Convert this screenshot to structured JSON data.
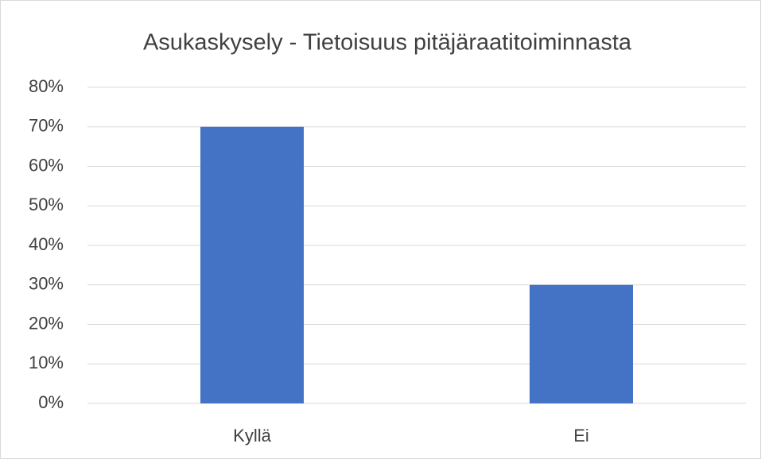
{
  "chart_data": {
    "type": "bar",
    "title": "Asukaskysely - Tietoisuus pitäjäraatitoiminnasta",
    "categories": [
      "Kyllä",
      "Ei"
    ],
    "values": [
      70,
      30
    ],
    "color": "#4472c4",
    "ylim": [
      0,
      80
    ],
    "yticks": [
      {
        "value": 0,
        "label": "0%"
      },
      {
        "value": 10,
        "label": "10%"
      },
      {
        "value": 20,
        "label": "20%"
      },
      {
        "value": 30,
        "label": "30%"
      },
      {
        "value": 40,
        "label": "40%"
      },
      {
        "value": 50,
        "label": "50%"
      },
      {
        "value": 60,
        "label": "60%"
      },
      {
        "value": 70,
        "label": "70%"
      },
      {
        "value": 80,
        "label": "80%"
      }
    ],
    "grid": true
  }
}
